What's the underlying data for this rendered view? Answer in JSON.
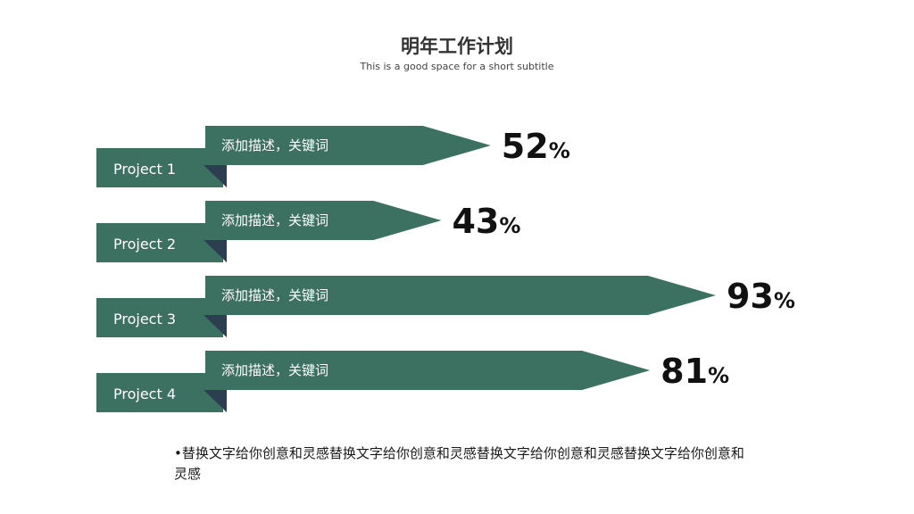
{
  "header": {
    "title": "明年工作计划",
    "subtitle": "This is a good space  for a short  subtitle"
  },
  "chart_data": {
    "type": "bar",
    "orientation": "horizontal",
    "categories": [
      "Project 1",
      "Project 2",
      "Project 3",
      "Project 4"
    ],
    "descriptions": [
      "添加描述，关键词",
      "添加描述，关键词",
      "添加描述，关键词",
      "添加描述，关键词"
    ],
    "values": [
      52,
      43,
      93,
      81
    ],
    "value_suffix": "%",
    "xlim": [
      0,
      100
    ],
    "grid": false,
    "legend": "none",
    "colors": {
      "bar": "#3c7162",
      "fold": "#2c3e4f",
      "label_text": "#ffffff",
      "value_text": "#111111"
    }
  },
  "note": {
    "text": "•替换文字给你创意和灵感替换文字给你创意和灵感替换文字给你创意和灵感替换文字给你创意和灵感"
  }
}
